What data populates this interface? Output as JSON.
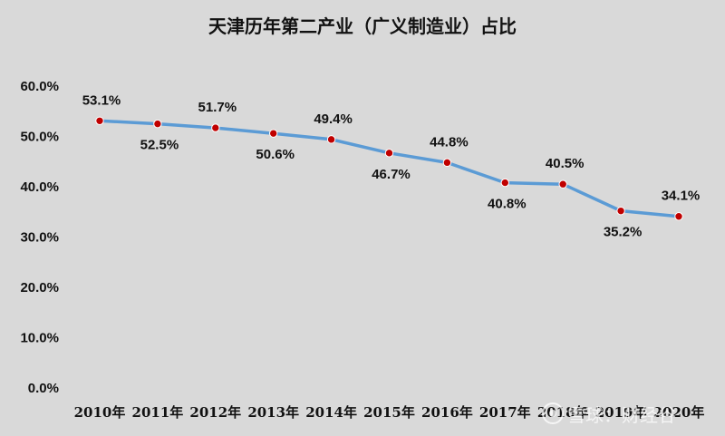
{
  "colors": {
    "background": "#d9d9d9",
    "line": "#5b9bd5",
    "marker": "#c00000"
  },
  "watermark": {
    "icon": "snowball-icon",
    "text": "雪球：财经谷"
  },
  "chart_data": {
    "type": "line",
    "title": "天津历年第二产业（广义制造业）占比",
    "xlabel": "",
    "ylabel": "",
    "categories": [
      "2010年",
      "2011年",
      "2012年",
      "2013年",
      "2014年",
      "2015年",
      "2016年",
      "2017年",
      "2018年",
      "2019年",
      "2020年"
    ],
    "series": [
      {
        "values": [
          53.1,
          52.5,
          51.7,
          50.6,
          49.4,
          46.7,
          44.8,
          40.8,
          40.5,
          35.2,
          34.1
        ],
        "labels": [
          "53.1%",
          "52.5%",
          "51.7%",
          "50.6%",
          "49.4%",
          "46.7%",
          "44.8%",
          "40.8%",
          "40.5%",
          "35.2%",
          "34.1%"
        ]
      }
    ],
    "ylim": [
      0,
      60
    ],
    "yticks": [
      0,
      10,
      20,
      30,
      40,
      50,
      60
    ],
    "ytick_labels": [
      "0.0%",
      "10.0%",
      "20.0%",
      "30.0%",
      "40.0%",
      "50.0%",
      "60.0%"
    ],
    "grid": false,
    "legend": "none"
  }
}
